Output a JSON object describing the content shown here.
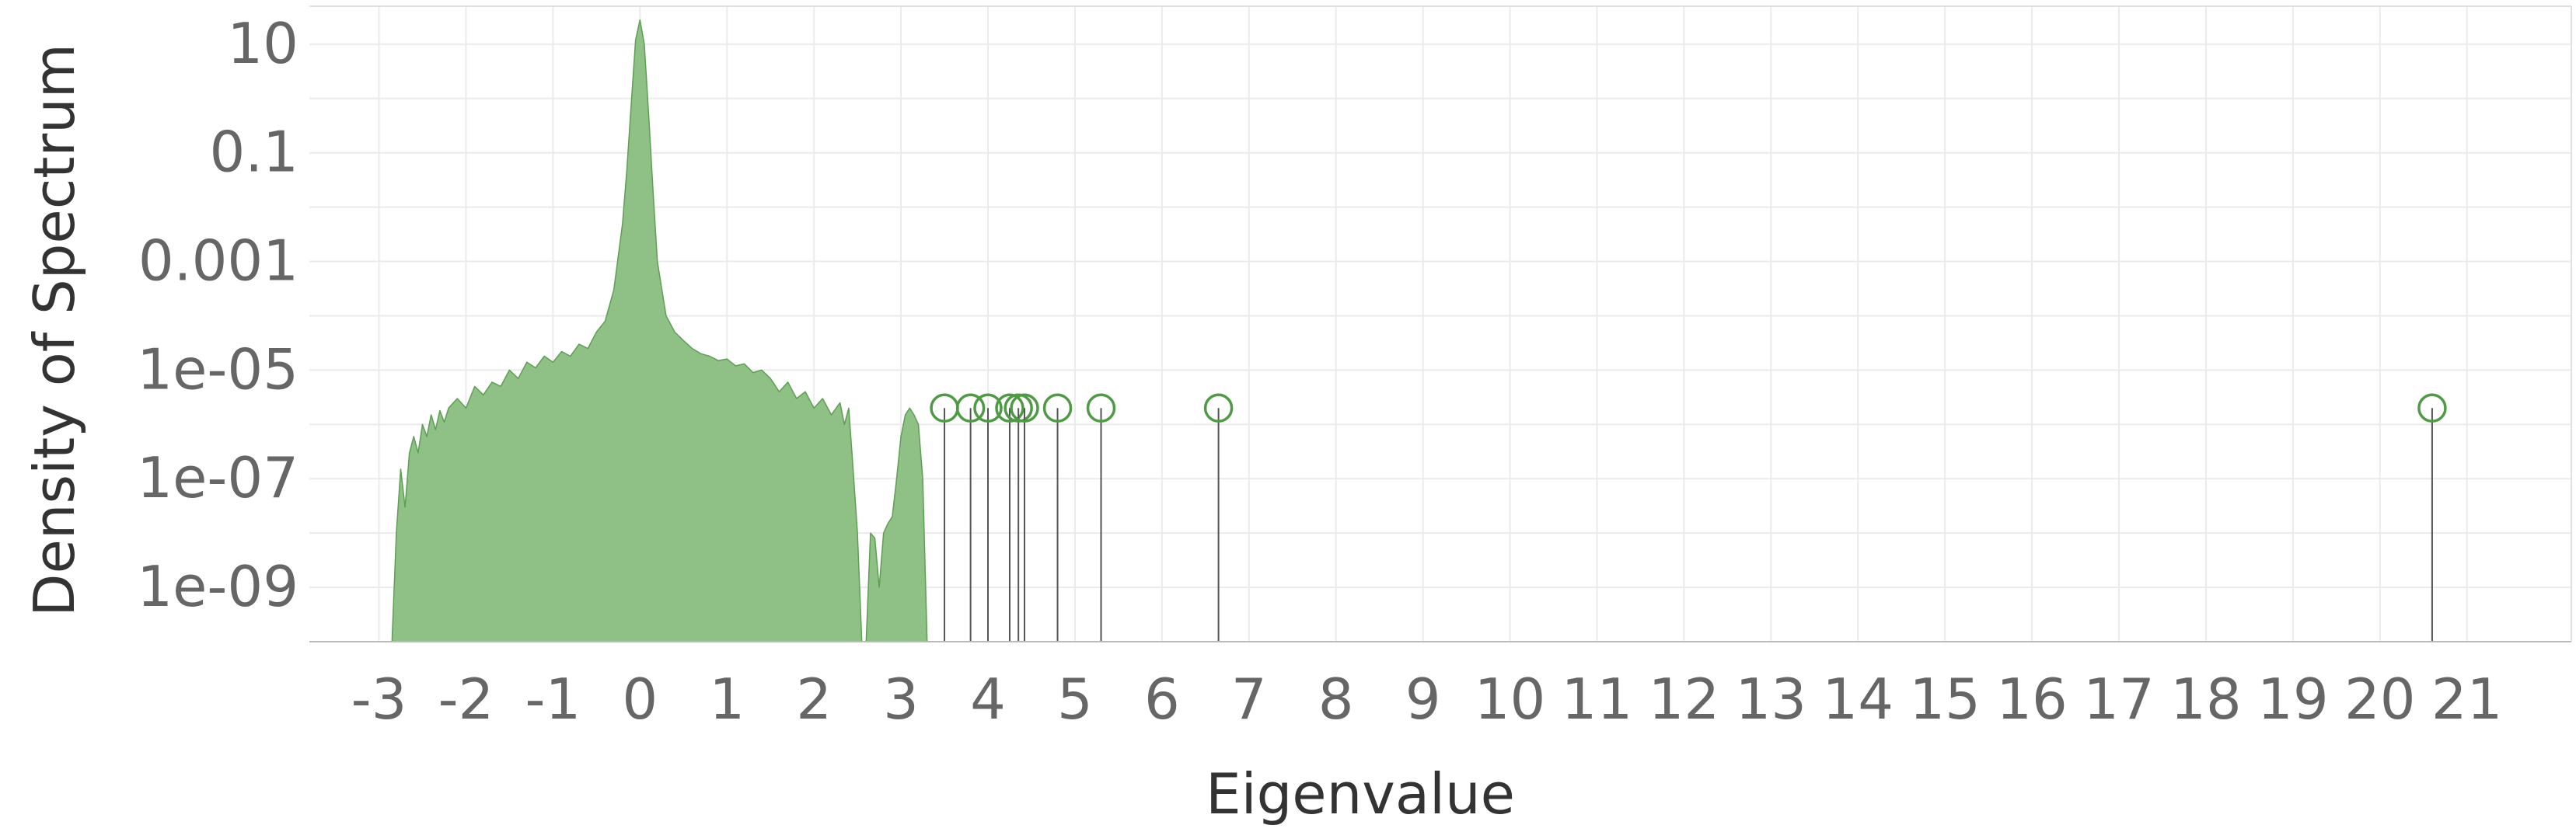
{
  "chart_data": {
    "type": "area",
    "title": "",
    "xlabel": "Eigenvalue",
    "ylabel": "Density of Spectrum",
    "yscale": "log",
    "grid": true,
    "xlim": [
      -3.8,
      22.2
    ],
    "ylim": [
      1e-10,
      50
    ],
    "xticks": [
      -3,
      -2,
      -1,
      0,
      1,
      2,
      3,
      4,
      5,
      6,
      7,
      8,
      9,
      10,
      11,
      12,
      13,
      14,
      15,
      16,
      17,
      18,
      19,
      20,
      21
    ],
    "yticks": [
      10,
      0.1,
      0.001,
      1e-05,
      1e-07,
      1e-09
    ],
    "yticklabels": [
      "10",
      "0.1",
      "0.001",
      "1e-05",
      "1e-07",
      "1e-09"
    ],
    "colors": {
      "fill": "#8fc085",
      "stroke": "#5f9e55",
      "outlier": "#4f9a45",
      "stem": "#555555",
      "grid": "#ebebeb"
    },
    "series": [
      {
        "type": "area",
        "x": [
          -2.85,
          -2.8,
          -2.75,
          -2.7,
          -2.65,
          -2.6,
          -2.55,
          -2.5,
          -2.45,
          -2.4,
          -2.35,
          -2.3,
          -2.25,
          -2.2,
          -2.1,
          -2.0,
          -1.9,
          -1.8,
          -1.7,
          -1.6,
          -1.5,
          -1.4,
          -1.3,
          -1.2,
          -1.1,
          -1.0,
          -0.9,
          -0.8,
          -0.7,
          -0.6,
          -0.5,
          -0.4,
          -0.3,
          -0.2,
          -0.15,
          -0.1,
          -0.05,
          0.0,
          0.05,
          0.1,
          0.15,
          0.2,
          0.3,
          0.4,
          0.5,
          0.6,
          0.7,
          0.8,
          0.9,
          1.0,
          1.1,
          1.2,
          1.3,
          1.4,
          1.5,
          1.6,
          1.7,
          1.8,
          1.9,
          2.0,
          2.1,
          2.2,
          2.3,
          2.35,
          2.4,
          2.45,
          2.5,
          2.55,
          2.6,
          2.65,
          2.7,
          2.75,
          2.8,
          2.85,
          2.9,
          2.95,
          3.0,
          3.05,
          3.1,
          3.15,
          3.2,
          3.25,
          3.3
        ],
        "y": [
          1e-10,
          1e-08,
          1.5e-07,
          3e-08,
          3e-07,
          6e-07,
          3e-07,
          1e-06,
          6e-07,
          1.5e-06,
          8e-07,
          1.8e-06,
          1.1e-06,
          2e-06,
          3e-06,
          2e-06,
          5e-06,
          3.5e-06,
          6e-06,
          5e-06,
          1e-05,
          7e-06,
          1.4e-05,
          1.1e-05,
          1.8e-05,
          1.4e-05,
          2.2e-05,
          1.8e-05,
          3e-05,
          2.5e-05,
          5e-05,
          8e-05,
          0.0003,
          0.005,
          0.05,
          0.8,
          12,
          28,
          10,
          0.5,
          0.02,
          0.001,
          0.0001,
          5e-05,
          3.5e-05,
          2.5e-05,
          2e-05,
          1.8e-05,
          1.5e-05,
          1.6e-05,
          1.2e-05,
          1.3e-05,
          9e-06,
          1e-05,
          7e-06,
          4e-06,
          6e-06,
          3e-06,
          4e-06,
          2e-06,
          3e-06,
          1.5e-06,
          2.5e-06,
          1e-06,
          2e-06,
          1.5e-07,
          1e-08,
          1e-10,
          1e-10,
          1e-08,
          8e-09,
          1e-09,
          1e-08,
          1.5e-08,
          2e-08,
          1e-07,
          6e-07,
          1.5e-06,
          2e-06,
          1.5e-06,
          1e-06,
          1e-07,
          1e-10
        ]
      },
      {
        "type": "stem",
        "x": [
          3.5,
          3.8,
          4.0,
          4.25,
          4.35,
          4.42,
          4.8,
          5.3,
          6.65,
          20.6
        ],
        "y": [
          2e-06,
          2e-06,
          2e-06,
          2e-06,
          2e-06,
          2e-06,
          2e-06,
          2e-06,
          2e-06,
          2e-06
        ]
      }
    ]
  }
}
